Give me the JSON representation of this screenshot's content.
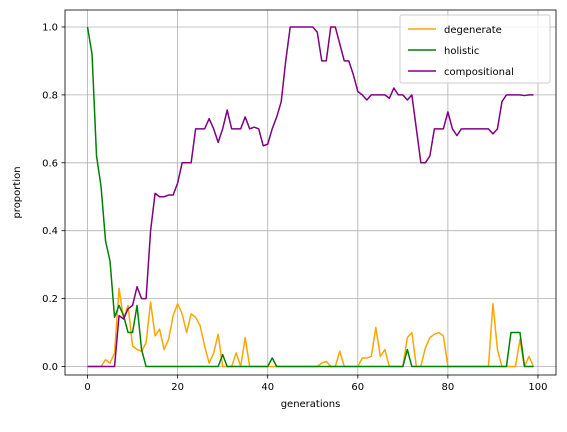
{
  "chart_data": {
    "type": "line",
    "title": "",
    "xlabel": "generations",
    "ylabel": "proportion",
    "xlim": [
      -5,
      104
    ],
    "ylim": [
      -0.025,
      1.05
    ],
    "xticks": [
      0,
      20,
      40,
      60,
      80,
      100
    ],
    "yticks": [
      0.0,
      0.2,
      0.4,
      0.6,
      0.8,
      1.0
    ],
    "xtick_labels": [
      "0",
      "20",
      "40",
      "60",
      "80",
      "100"
    ],
    "ytick_labels": [
      "0.0",
      "0.2",
      "0.4",
      "0.6",
      "0.8",
      "1.0"
    ],
    "grid": true,
    "legend_position": "top-right",
    "x": [
      0,
      1,
      2,
      3,
      4,
      5,
      6,
      7,
      8,
      9,
      10,
      11,
      12,
      13,
      14,
      15,
      16,
      17,
      18,
      19,
      20,
      21,
      22,
      23,
      24,
      25,
      26,
      27,
      28,
      29,
      30,
      31,
      32,
      33,
      34,
      35,
      36,
      37,
      38,
      39,
      40,
      41,
      42,
      43,
      44,
      45,
      46,
      47,
      48,
      49,
      50,
      51,
      52,
      53,
      54,
      55,
      56,
      57,
      58,
      59,
      60,
      61,
      62,
      63,
      64,
      65,
      66,
      67,
      68,
      69,
      70,
      71,
      72,
      73,
      74,
      75,
      76,
      77,
      78,
      79,
      80,
      81,
      82,
      83,
      84,
      85,
      86,
      87,
      88,
      89,
      90,
      91,
      92,
      93,
      94,
      95,
      96,
      97,
      98,
      99
    ],
    "series": [
      {
        "name": "degenerate",
        "color": "#ffa500",
        "values": [
          0,
          0,
          0,
          0,
          0.02,
          0.01,
          0.04,
          0.23,
          0.14,
          0.18,
          0.06,
          0.05,
          0.045,
          0.07,
          0.19,
          0.09,
          0.11,
          0.05,
          0.08,
          0.15,
          0.185,
          0.155,
          0.1,
          0.155,
          0.145,
          0.12,
          0.06,
          0.01,
          0.04,
          0.095,
          0,
          0,
          0,
          0.04,
          0,
          0.085,
          0,
          0,
          0,
          0,
          0,
          0,
          0,
          0,
          0,
          0,
          0,
          0,
          0,
          0,
          0,
          0,
          0.01,
          0.015,
          0,
          0,
          0.045,
          0,
          0,
          0,
          0,
          0.025,
          0.025,
          0.03,
          0.115,
          0.03,
          0.05,
          0,
          0,
          0,
          0,
          0.085,
          0.1,
          0,
          0,
          0.055,
          0.085,
          0.095,
          0.1,
          0.09,
          0,
          0,
          0,
          0,
          0,
          0,
          0,
          0,
          0,
          0,
          0.185,
          0.05,
          0,
          0,
          0,
          0,
          0.08,
          0,
          0.03,
          0
        ],
        "stroke": 1.5
      },
      {
        "name": "holistic",
        "color": "#008000",
        "values": [
          1.0,
          0.92,
          0.62,
          0.53,
          0.37,
          0.31,
          0.145,
          0.18,
          0.15,
          0.1,
          0.1,
          0.18,
          0.05,
          0,
          0,
          0,
          0,
          0,
          0,
          0,
          0,
          0,
          0,
          0,
          0,
          0,
          0,
          0,
          0,
          0,
          0.035,
          0,
          0,
          0,
          0,
          0,
          0,
          0,
          0,
          0,
          0,
          0.025,
          0,
          0,
          0,
          0,
          0,
          0,
          0,
          0,
          0,
          0,
          0,
          0,
          0,
          0,
          0,
          0,
          0,
          0,
          0,
          0,
          0,
          0,
          0,
          0,
          0,
          0,
          0,
          0,
          0,
          0.05,
          0,
          0,
          0,
          0,
          0,
          0,
          0,
          0,
          0,
          0,
          0,
          0,
          0,
          0,
          0,
          0,
          0,
          0,
          0,
          0,
          0,
          0,
          0.1,
          0.1,
          0.1,
          0,
          0,
          0
        ],
        "stroke": 1.5
      },
      {
        "name": "compositional",
        "color": "#800080",
        "values": [
          0,
          0,
          0,
          0,
          0,
          0,
          0,
          0.15,
          0.14,
          0.17,
          0.18,
          0.235,
          0.2,
          0.2,
          0.4,
          0.51,
          0.5,
          0.5,
          0.505,
          0.505,
          0.54,
          0.6,
          0.6,
          0.6,
          0.7,
          0.7,
          0.7,
          0.73,
          0.7,
          0.66,
          0.7,
          0.755,
          0.7,
          0.7,
          0.7,
          0.735,
          0.7,
          0.705,
          0.7,
          0.65,
          0.655,
          0.7,
          0.735,
          0.78,
          0.9,
          1.0,
          1.0,
          1.0,
          1.0,
          1.0,
          1.0,
          0.985,
          0.9,
          0.9,
          1.0,
          1.0,
          0.95,
          0.9,
          0.9,
          0.86,
          0.81,
          0.8,
          0.785,
          0.8,
          0.8,
          0.8,
          0.8,
          0.79,
          0.82,
          0.8,
          0.8,
          0.785,
          0.8,
          0.7,
          0.6,
          0.6,
          0.62,
          0.7,
          0.7,
          0.7,
          0.75,
          0.7,
          0.68,
          0.7,
          0.7,
          0.7,
          0.7,
          0.7,
          0.7,
          0.7,
          0.685,
          0.7,
          0.78,
          0.8,
          0.8,
          0.8,
          0.8,
          0.798,
          0.8,
          0.8
        ],
        "stroke": 1.5
      }
    ]
  }
}
